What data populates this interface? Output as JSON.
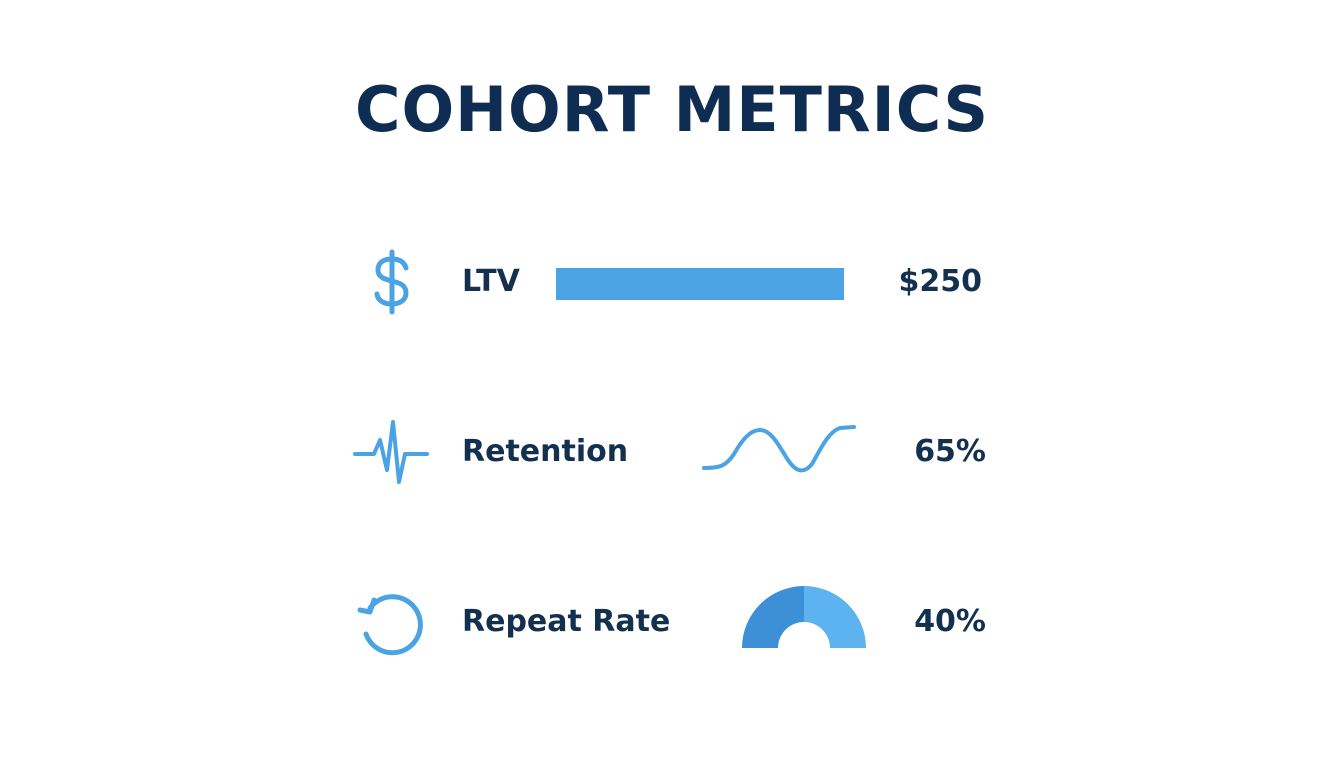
{
  "title": "COHORT METRICS",
  "colors": {
    "title": "#0f2d52",
    "text": "#13304f",
    "accent": "#4ba3e3",
    "accent_dark": "#3d8fd6",
    "accent_light": "#5cb3f0"
  },
  "metrics": [
    {
      "icon": "dollar-sign-icon",
      "label": "LTV",
      "value": "$250",
      "visual": "bar"
    },
    {
      "icon": "heartbeat-icon",
      "label": "Retention",
      "value": "65%",
      "visual": "wave"
    },
    {
      "icon": "refresh-cycle-icon",
      "label": "Repeat Rate",
      "value": "40%",
      "visual": "half-gauge"
    }
  ]
}
